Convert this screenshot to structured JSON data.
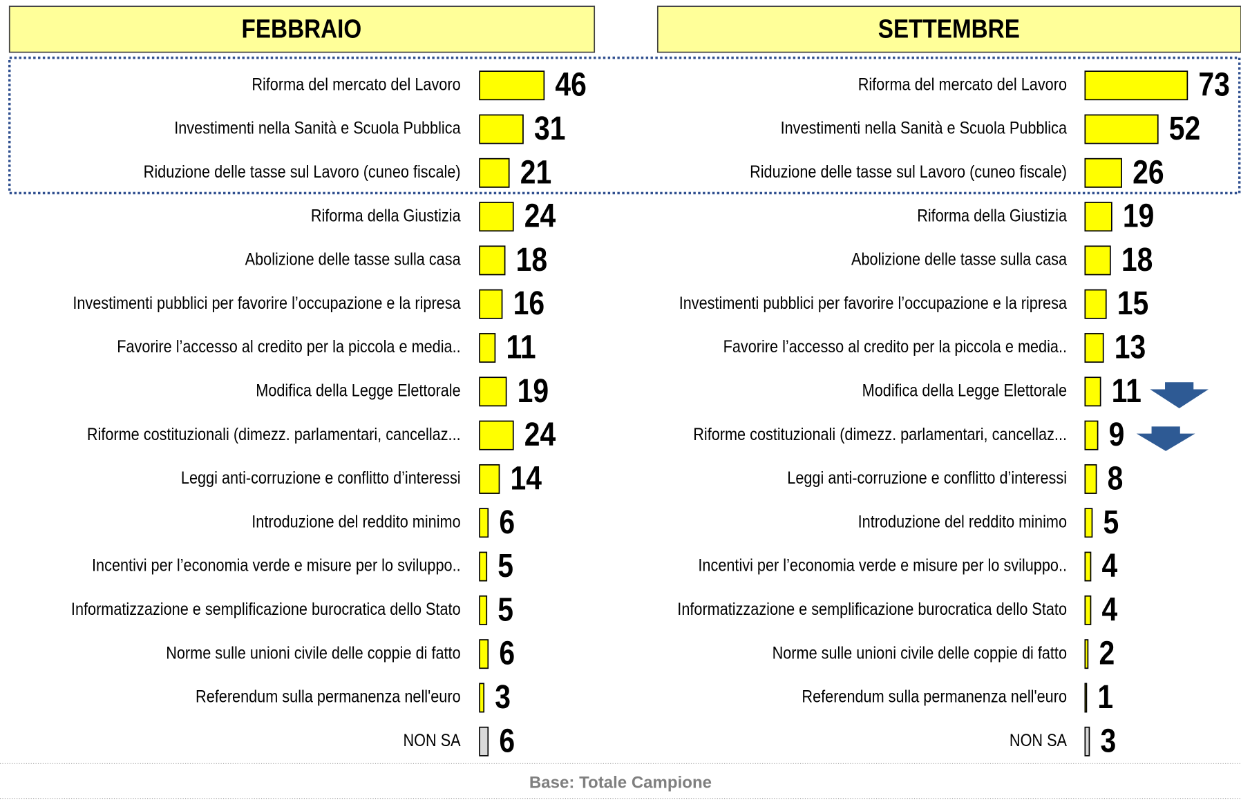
{
  "chart_data": [
    {
      "type": "bar",
      "title": "FEBBRAIO",
      "categories": [
        "Riforma del mercato del Lavoro",
        "Investimenti nella Sanità e Scuola Pubblica",
        "Riduzione delle tasse sul Lavoro (cuneo fiscale)",
        "Riforma della Giustizia",
        "Abolizione delle tasse sulla casa",
        "Investimenti pubblici per favorire l’occupazione e la ripresa",
        "Favorire l’accesso al credito per la piccola e media..",
        "Modifica della Legge Elettorale",
        "Riforme costituzionali (dimezz. parlamentari, cancellaz...",
        "Leggi anti-corruzione e conflitto d’interessi",
        "Introduzione del reddito minimo",
        "Incentivi per l’economia verde e misure per lo sviluppo..",
        "Informatizzazione e semplificazione burocratica dello Stato",
        "Norme sulle unioni civile delle coppie di fatto",
        "Referendum sulla permanenza nell'euro",
        "NON SA"
      ],
      "values": [
        46,
        31,
        21,
        24,
        18,
        16,
        11,
        19,
        24,
        14,
        6,
        5,
        5,
        6,
        3,
        6
      ],
      "colors": [
        "#ffff00",
        "#ffff00",
        "#ffff00",
        "#ffff00",
        "#ffff00",
        "#ffff00",
        "#ffff00",
        "#ffff00",
        "#ffff00",
        "#ffff00",
        "#ffff00",
        "#ffff00",
        "#ffff00",
        "#ffff00",
        "#ffff00",
        "#d9d9d9"
      ]
    },
    {
      "type": "bar",
      "title": "SETTEMBRE",
      "categories": [
        "Riforma del mercato del Lavoro",
        "Investimenti nella Sanità e Scuola Pubblica",
        "Riduzione delle tasse sul Lavoro (cuneo fiscale)",
        "Riforma della Giustizia",
        "Abolizione delle tasse sulla casa",
        "Investimenti pubblici per favorire l’occupazione e la ripresa",
        "Favorire l’accesso al credito per la piccola e media..",
        "Modifica della Legge Elettorale",
        "Riforme costituzionali (dimezz. parlamentari, cancellaz...",
        "Leggi anti-corruzione e conflitto d’interessi",
        "Introduzione del reddito minimo",
        "Incentivi per l’economia verde e misure per lo sviluppo..",
        "Informatizzazione e semplificazione burocratica dello Stato",
        "Norme sulle unioni civile delle coppie di fatto",
        "Referendum sulla permanenza nell'euro",
        "NON SA"
      ],
      "values": [
        73,
        52,
        26,
        19,
        18,
        15,
        13,
        11,
        9,
        8,
        5,
        4,
        4,
        2,
        1,
        3
      ],
      "colors": [
        "#ffff00",
        "#ffff00",
        "#ffff00",
        "#ffff00",
        "#ffff00",
        "#ffff00",
        "#ffff00",
        "#ffff00",
        "#ffff00",
        "#ffff00",
        "#ffff00",
        "#ffff00",
        "#ffff00",
        "#ffff00",
        "#ffff00",
        "#d9d9d9"
      ]
    }
  ],
  "footer": "Base: Totale Campione"
}
